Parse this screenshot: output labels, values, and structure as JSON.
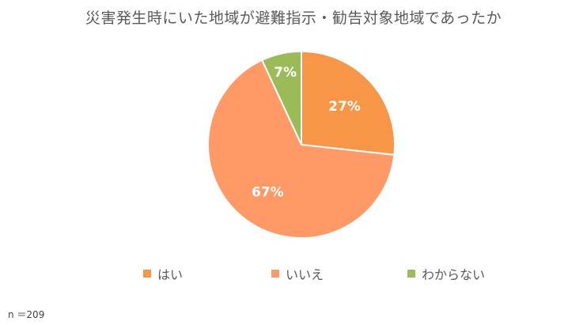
{
  "chart_data": {
    "type": "pie",
    "title": "災害発生時にいた地域が避難指示・勧告対象地域であったか",
    "categories": [
      "はい",
      "いいえ",
      "わからない"
    ],
    "values": [
      27,
      67,
      7
    ],
    "data_labels": [
      "27%",
      "67%",
      "7%"
    ],
    "colors": [
      "#F79646",
      "#FF9966",
      "#9BBB59"
    ],
    "legend_position": "bottom",
    "start_angle": "12 o'clock, clockwise"
  },
  "footnote": "n ＝209"
}
